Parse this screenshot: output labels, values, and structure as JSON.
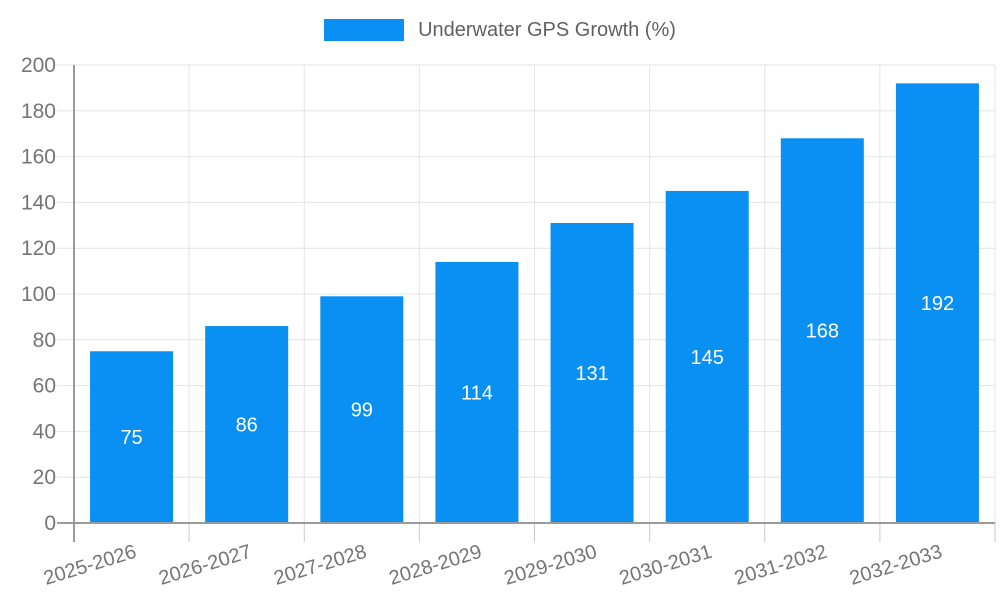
{
  "chart_data": {
    "type": "bar",
    "title": "",
    "legend": "Underwater GPS Growth (%)",
    "legend_position": "top-center",
    "categories": [
      "2025-2026",
      "2026-2027",
      "2027-2028",
      "2028-2029",
      "2029-2030",
      "2030-2031",
      "2031-2032",
      "2032-2033"
    ],
    "series": [
      {
        "name": "Underwater GPS Growth (%)",
        "values": [
          75,
          86,
          99,
          114,
          131,
          145,
          168,
          192
        ]
      }
    ],
    "xlabel": "",
    "ylabel": "",
    "ylim": [
      0,
      200
    ],
    "ytick_step": 20,
    "grid": true,
    "bar_color": "#0a90f2",
    "value_label_color": "#ffffff",
    "axis_label_color": "#757575",
    "legend_text_color": "#616161",
    "grid_color": "#e4e4e4",
    "tick_color": "#c9c9c9",
    "axis_line_color": "#9a9a9a",
    "background_color": "#ffffff"
  }
}
